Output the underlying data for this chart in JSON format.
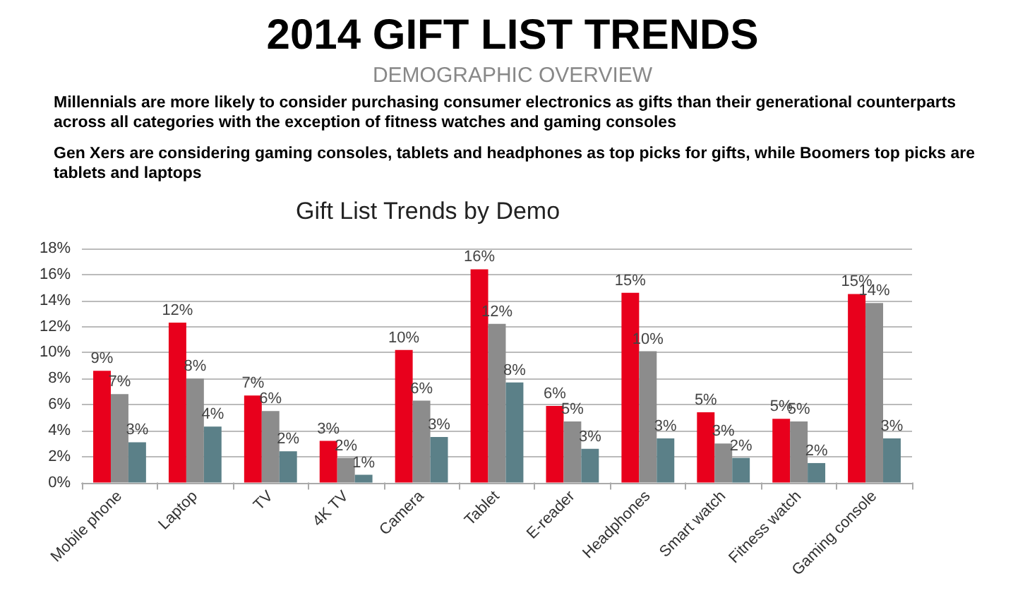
{
  "chart_data": {
    "type": "bar",
    "title": "Gift List Trends by Demo",
    "subtitle": "DEMOGRAPHIC OVERVIEW",
    "annotations": [
      "2014 GIFT LIST TRENDS",
      "Millennials are more likely to consider purchasing consumer electronics as gifts than their generational counterparts across all categories with the exception of fitness watches and gaming consoles",
      "Gen Xers are considering gaming consoles, tablets and headphones as top picks for gifts, while Boomers top picks are tablets and laptops"
    ],
    "categories": [
      "Mobile phone",
      "Laptop",
      "TV",
      "4K TV",
      "Camera",
      "Tablet",
      "E-reader",
      "Headphones",
      "Smart watch",
      "Fitness watch",
      "Gaming console"
    ],
    "series": [
      {
        "color": "#e8001c",
        "values": [
          8.6,
          12.3,
          6.7,
          3.2,
          10.2,
          16.4,
          5.9,
          14.6,
          5.4,
          4.9,
          14.5
        ],
        "value_labels": [
          "9%",
          "12%",
          "7%",
          "3%",
          "10%",
          "16%",
          "6%",
          "15%",
          "5%",
          "5%",
          "15%"
        ]
      },
      {
        "color": "#8c8c8c",
        "values": [
          6.8,
          8.0,
          5.5,
          1.9,
          6.3,
          12.2,
          4.7,
          10.1,
          3.0,
          4.7,
          13.8
        ],
        "value_labels": [
          "7%",
          "8%",
          "6%",
          "2%",
          "6%",
          "12%",
          "5%",
          "10%",
          "3%",
          "5%",
          "14%"
        ]
      },
      {
        "color": "#5b8088",
        "values": [
          3.1,
          4.3,
          2.4,
          0.6,
          3.5,
          7.7,
          2.6,
          3.4,
          1.9,
          1.5,
          3.4
        ],
        "value_labels": [
          "3%",
          "4%",
          "2%",
          "1%",
          "3%",
          "8%",
          "3%",
          "3%",
          "2%",
          "2%",
          "3%"
        ]
      }
    ],
    "ylim": [
      0,
      18
    ],
    "yticks": [
      {
        "value": 0,
        "label": "0%"
      },
      {
        "value": 2,
        "label": "2%"
      },
      {
        "value": 4,
        "label": "4%"
      },
      {
        "value": 6,
        "label": "6%"
      },
      {
        "value": 8,
        "label": "8%"
      },
      {
        "value": 10,
        "label": "10%"
      },
      {
        "value": 12,
        "label": "12%"
      },
      {
        "value": 14,
        "label": "14%"
      },
      {
        "value": 16,
        "label": "16%"
      },
      {
        "value": 18,
        "label": "18%"
      }
    ],
    "grid": "y"
  }
}
